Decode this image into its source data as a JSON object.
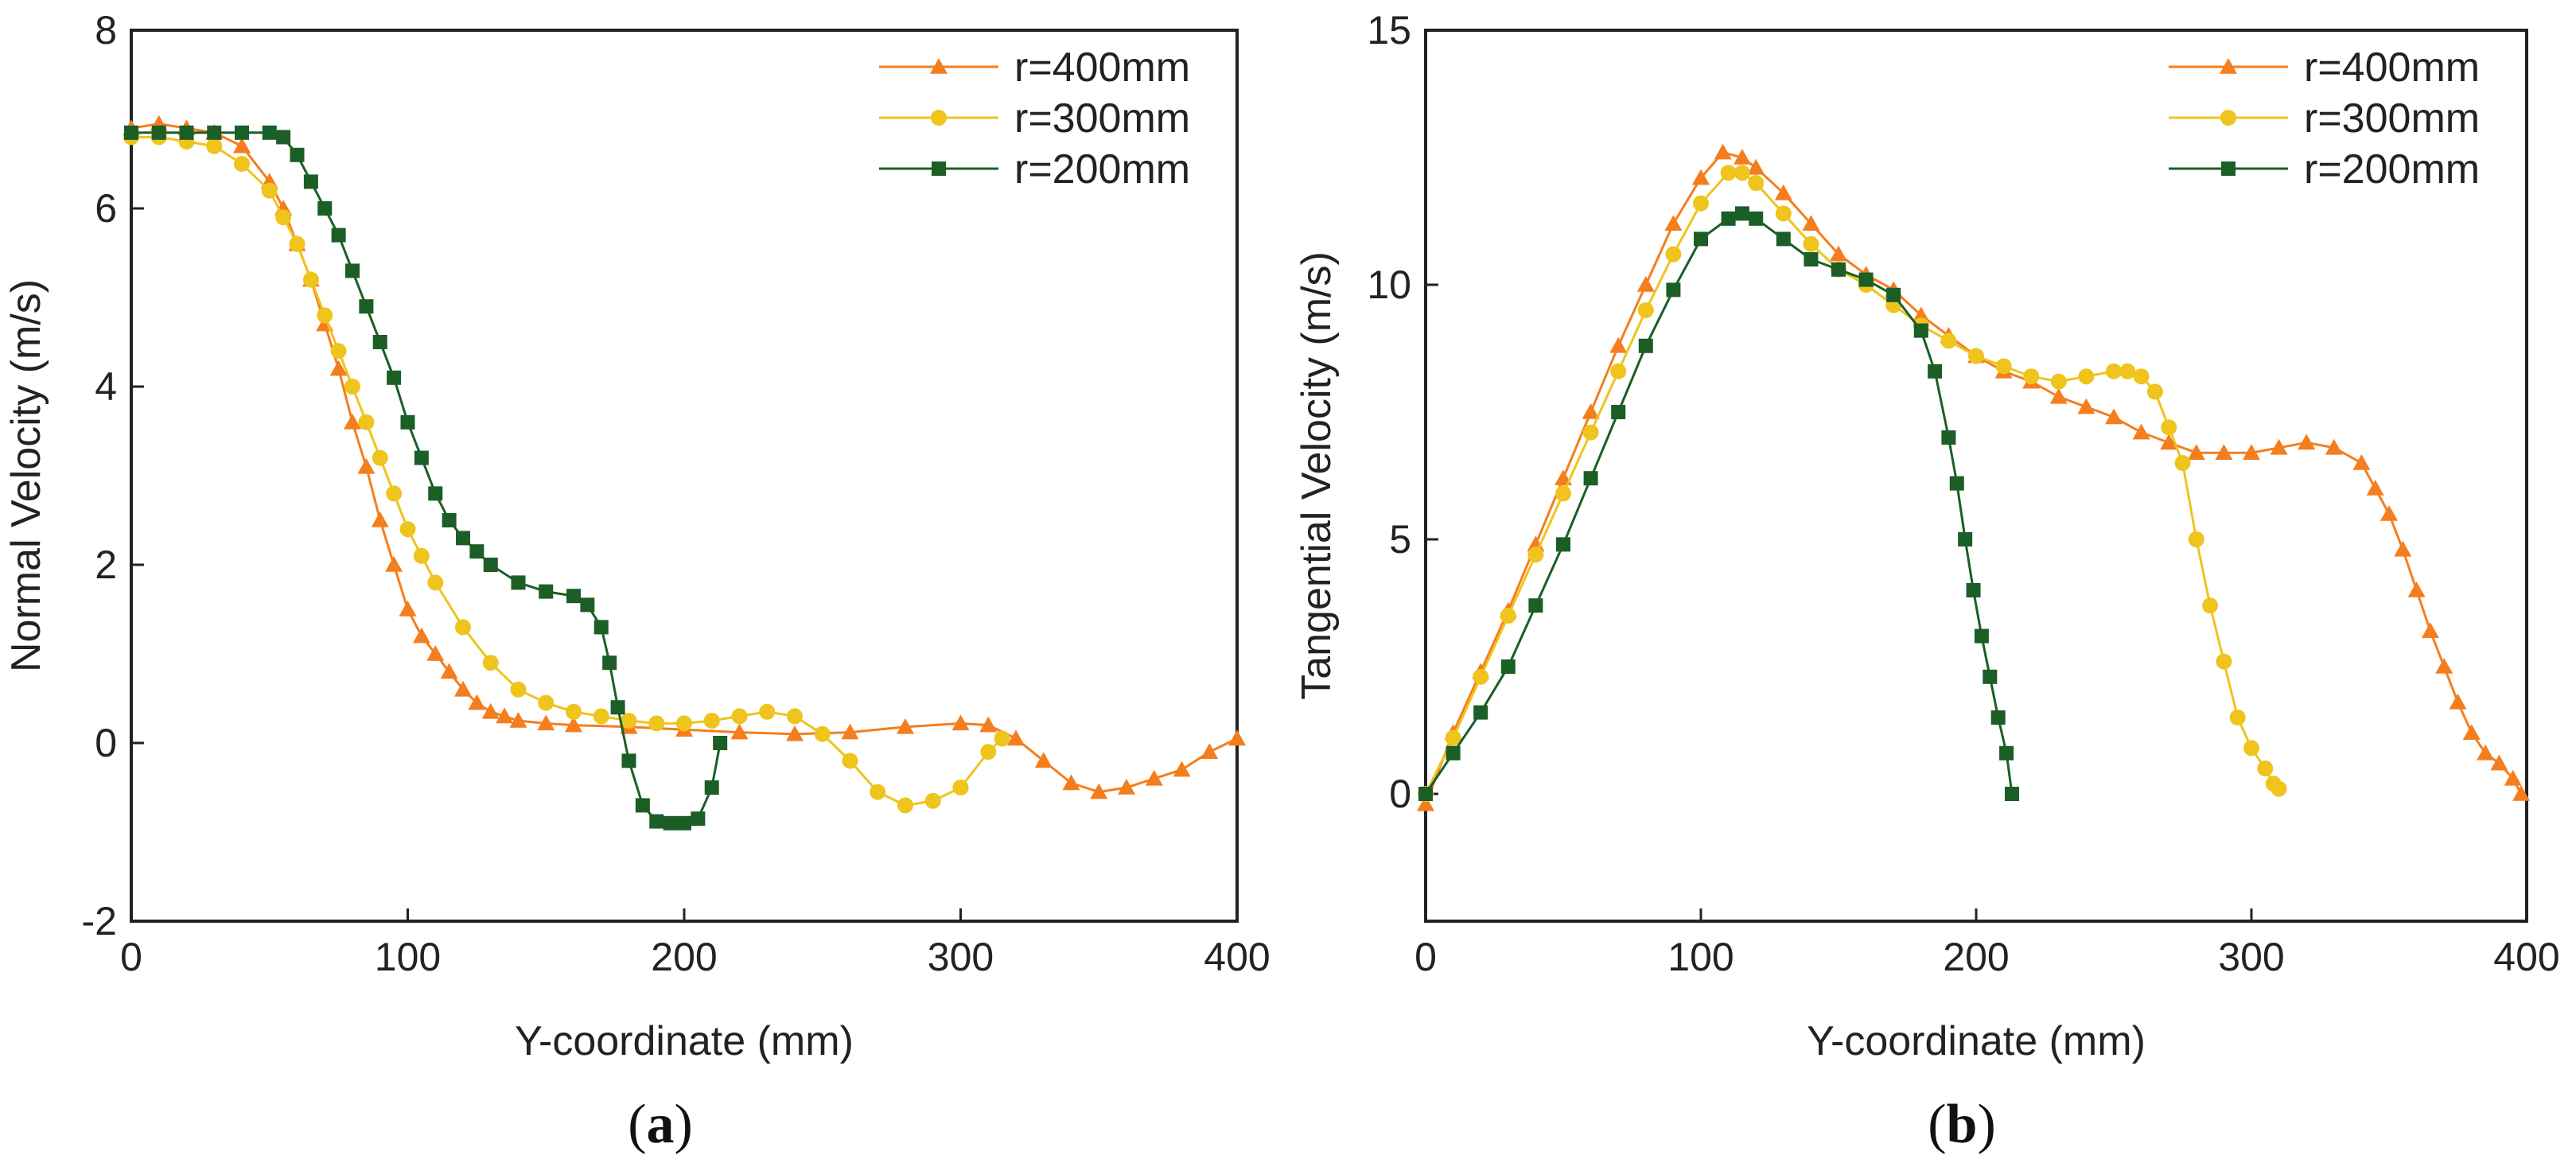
{
  "colors": {
    "r400": "#F47E1E",
    "r300": "#EEC41D",
    "r200": "#1B5E26"
  },
  "chart_data": [
    {
      "type": "line",
      "panel_label": "(a)",
      "panel_paren_open": "(",
      "panel_letter": "a",
      "panel_paren_close": ")",
      "xlabel": "Y-coordinate (mm)",
      "ylabel": "Normal Velocity (m/s)",
      "xlim": [
        0,
        400
      ],
      "ylim": [
        -2,
        8
      ],
      "xticks": [
        0,
        100,
        200,
        300,
        400
      ],
      "xtick_labels": [
        "0",
        "100",
        "200",
        "300",
        "400"
      ],
      "yticks": [
        -2,
        0,
        2,
        4,
        6,
        8
      ],
      "ytick_labels": [
        "-2",
        "0",
        "2",
        "4",
        "6",
        "8"
      ],
      "legend_position": "top-right",
      "series": [
        {
          "name": "r=400mm",
          "marker": "triangle",
          "color_key": "r400",
          "x": [
            0,
            10,
            20,
            30,
            40,
            50,
            55,
            60,
            65,
            70,
            75,
            80,
            85,
            90,
            95,
            100,
            105,
            110,
            115,
            120,
            125,
            130,
            135,
            140,
            150,
            160,
            180,
            200,
            220,
            240,
            260,
            280,
            300,
            310,
            320,
            330,
            340,
            350,
            360,
            370,
            380,
            390,
            400
          ],
          "y": [
            6.9,
            6.95,
            6.9,
            6.85,
            6.7,
            6.3,
            6.0,
            5.6,
            5.2,
            4.7,
            4.2,
            3.6,
            3.1,
            2.5,
            2.0,
            1.5,
            1.2,
            1.0,
            0.8,
            0.6,
            0.45,
            0.35,
            0.3,
            0.25,
            0.22,
            0.2,
            0.18,
            0.15,
            0.12,
            0.1,
            0.12,
            0.18,
            0.22,
            0.2,
            0.05,
            -0.2,
            -0.45,
            -0.55,
            -0.5,
            -0.4,
            -0.3,
            -0.1,
            0.05
          ]
        },
        {
          "name": "r=300mm",
          "marker": "circle",
          "color_key": "r300",
          "x": [
            0,
            10,
            20,
            30,
            40,
            50,
            55,
            60,
            65,
            70,
            75,
            80,
            85,
            90,
            95,
            100,
            105,
            110,
            120,
            130,
            140,
            150,
            160,
            170,
            180,
            190,
            200,
            210,
            220,
            230,
            240,
            250,
            260,
            270,
            280,
            290,
            300,
            310,
            315
          ],
          "y": [
            6.8,
            6.8,
            6.75,
            6.7,
            6.5,
            6.2,
            5.9,
            5.6,
            5.2,
            4.8,
            4.4,
            4.0,
            3.6,
            3.2,
            2.8,
            2.4,
            2.1,
            1.8,
            1.3,
            0.9,
            0.6,
            0.45,
            0.35,
            0.3,
            0.25,
            0.22,
            0.22,
            0.25,
            0.3,
            0.35,
            0.3,
            0.1,
            -0.2,
            -0.55,
            -0.7,
            -0.65,
            -0.5,
            -0.1,
            0.05
          ]
        },
        {
          "name": "r=200mm",
          "marker": "square",
          "color_key": "r200",
          "x": [
            0,
            10,
            20,
            30,
            40,
            50,
            55,
            60,
            65,
            70,
            75,
            80,
            85,
            90,
            95,
            100,
            105,
            110,
            115,
            120,
            125,
            130,
            140,
            150,
            160,
            165,
            170,
            173,
            176,
            180,
            185,
            190,
            195,
            200,
            205,
            210,
            213
          ],
          "y": [
            6.85,
            6.85,
            6.85,
            6.85,
            6.85,
            6.85,
            6.8,
            6.6,
            6.3,
            6.0,
            5.7,
            5.3,
            4.9,
            4.5,
            4.1,
            3.6,
            3.2,
            2.8,
            2.5,
            2.3,
            2.15,
            2.0,
            1.8,
            1.7,
            1.65,
            1.55,
            1.3,
            0.9,
            0.4,
            -0.2,
            -0.7,
            -0.88,
            -0.9,
            -0.9,
            -0.85,
            -0.5,
            0.0
          ]
        }
      ]
    },
    {
      "type": "line",
      "panel_label": "(b)",
      "panel_paren_open": "(",
      "panel_letter": "b",
      "panel_paren_close": ")",
      "xlabel": "Y-coordinate (mm)",
      "ylabel": "Tangential Velocity (m/s)",
      "xlim": [
        0,
        400
      ],
      "ylim": [
        -2.5,
        15
      ],
      "xticks": [
        0,
        100,
        200,
        300,
        400
      ],
      "xtick_labels": [
        "0",
        "100",
        "200",
        "300",
        "400"
      ],
      "yticks": [
        0,
        5,
        10,
        15
      ],
      "ytick_labels": [
        "0",
        "5",
        "10",
        "15"
      ],
      "legend_position": "top-right",
      "series": [
        {
          "name": "r=400mm",
          "marker": "triangle",
          "color_key": "r400",
          "x": [
            0,
            10,
            20,
            30,
            40,
            50,
            60,
            70,
            80,
            90,
            100,
            108,
            115,
            120,
            130,
            140,
            150,
            160,
            170,
            180,
            190,
            200,
            210,
            220,
            230,
            240,
            250,
            260,
            270,
            280,
            290,
            300,
            310,
            320,
            330,
            340,
            345,
            350,
            355,
            360,
            365,
            370,
            375,
            380,
            385,
            390,
            395,
            398
          ],
          "y": [
            -0.2,
            1.2,
            2.4,
            3.6,
            4.9,
            6.2,
            7.5,
            8.8,
            10.0,
            11.2,
            12.1,
            12.6,
            12.5,
            12.3,
            11.8,
            11.2,
            10.6,
            10.2,
            9.9,
            9.4,
            9.0,
            8.6,
            8.3,
            8.1,
            7.8,
            7.6,
            7.4,
            7.1,
            6.9,
            6.7,
            6.7,
            6.7,
            6.8,
            6.9,
            6.8,
            6.5,
            6.0,
            5.5,
            4.8,
            4.0,
            3.2,
            2.5,
            1.8,
            1.2,
            0.8,
            0.6,
            0.3,
            0.0
          ]
        },
        {
          "name": "r=300mm",
          "marker": "circle",
          "color_key": "r300",
          "x": [
            0,
            10,
            20,
            30,
            40,
            50,
            60,
            70,
            80,
            90,
            100,
            110,
            115,
            120,
            130,
            140,
            150,
            160,
            170,
            180,
            190,
            200,
            210,
            220,
            230,
            240,
            250,
            255,
            260,
            265,
            270,
            275,
            280,
            285,
            290,
            295,
            300,
            305,
            308,
            310
          ],
          "y": [
            0.0,
            1.1,
            2.3,
            3.5,
            4.7,
            5.9,
            7.1,
            8.3,
            9.5,
            10.6,
            11.6,
            12.2,
            12.2,
            12.0,
            11.4,
            10.8,
            10.3,
            10.0,
            9.6,
            9.2,
            8.9,
            8.6,
            8.4,
            8.2,
            8.1,
            8.2,
            8.3,
            8.3,
            8.2,
            7.9,
            7.2,
            6.5,
            5.0,
            3.7,
            2.6,
            1.5,
            0.9,
            0.5,
            0.2,
            0.1
          ]
        },
        {
          "name": "r=200mm",
          "marker": "square",
          "color_key": "r200",
          "x": [
            0,
            10,
            20,
            30,
            40,
            50,
            60,
            70,
            80,
            90,
            100,
            110,
            115,
            120,
            130,
            140,
            150,
            160,
            170,
            180,
            185,
            190,
            193,
            196,
            199,
            202,
            205,
            208,
            211,
            213
          ],
          "y": [
            0.0,
            0.8,
            1.6,
            2.5,
            3.7,
            4.9,
            6.2,
            7.5,
            8.8,
            9.9,
            10.9,
            11.3,
            11.4,
            11.3,
            10.9,
            10.5,
            10.3,
            10.1,
            9.8,
            9.1,
            8.3,
            7.0,
            6.1,
            5.0,
            4.0,
            3.1,
            2.3,
            1.5,
            0.8,
            0.0
          ]
        }
      ]
    }
  ]
}
